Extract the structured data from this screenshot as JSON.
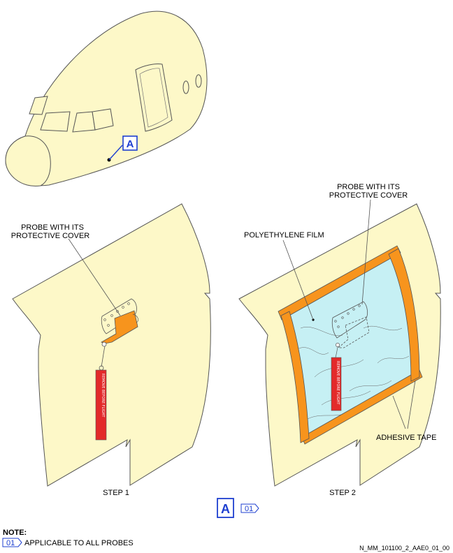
{
  "colors": {
    "skin": "#fdf8c8",
    "outline": "#555555",
    "orange": "#f7941d",
    "film": "#c6f0f4",
    "red": "#e32a2a",
    "callout_blue": "#1d3fd0"
  },
  "detail_ref": "A",
  "labels": {
    "step1_probe_line1": "PROBE WITH ITS",
    "step1_probe_line2": "PROTECTIVE COVER",
    "step2_probe_line1": "PROBE WITH ITS",
    "step2_probe_line2": "PROTECTIVE COVER",
    "polyethylene_film": "POLYETHYLENE FILM",
    "adhesive_tape": "ADHESIVE TAPE",
    "step1": "STEP 1",
    "step2": "STEP 2"
  },
  "streamer_text": "REMOVE BEFORE FLIGHT",
  "flag_label": "01",
  "note": {
    "title": "NOTE:",
    "flag": "01",
    "text": "APPLICABLE TO ALL PROBES"
  },
  "doc_id": "N_MM_101100_2_AAE0_01_00",
  "icons": [
    "nose-section-illustration",
    "fuselage-skin-panel",
    "probe-cover",
    "remove-before-flight-streamer",
    "adhesive-tape-strip",
    "polyethylene-film"
  ]
}
